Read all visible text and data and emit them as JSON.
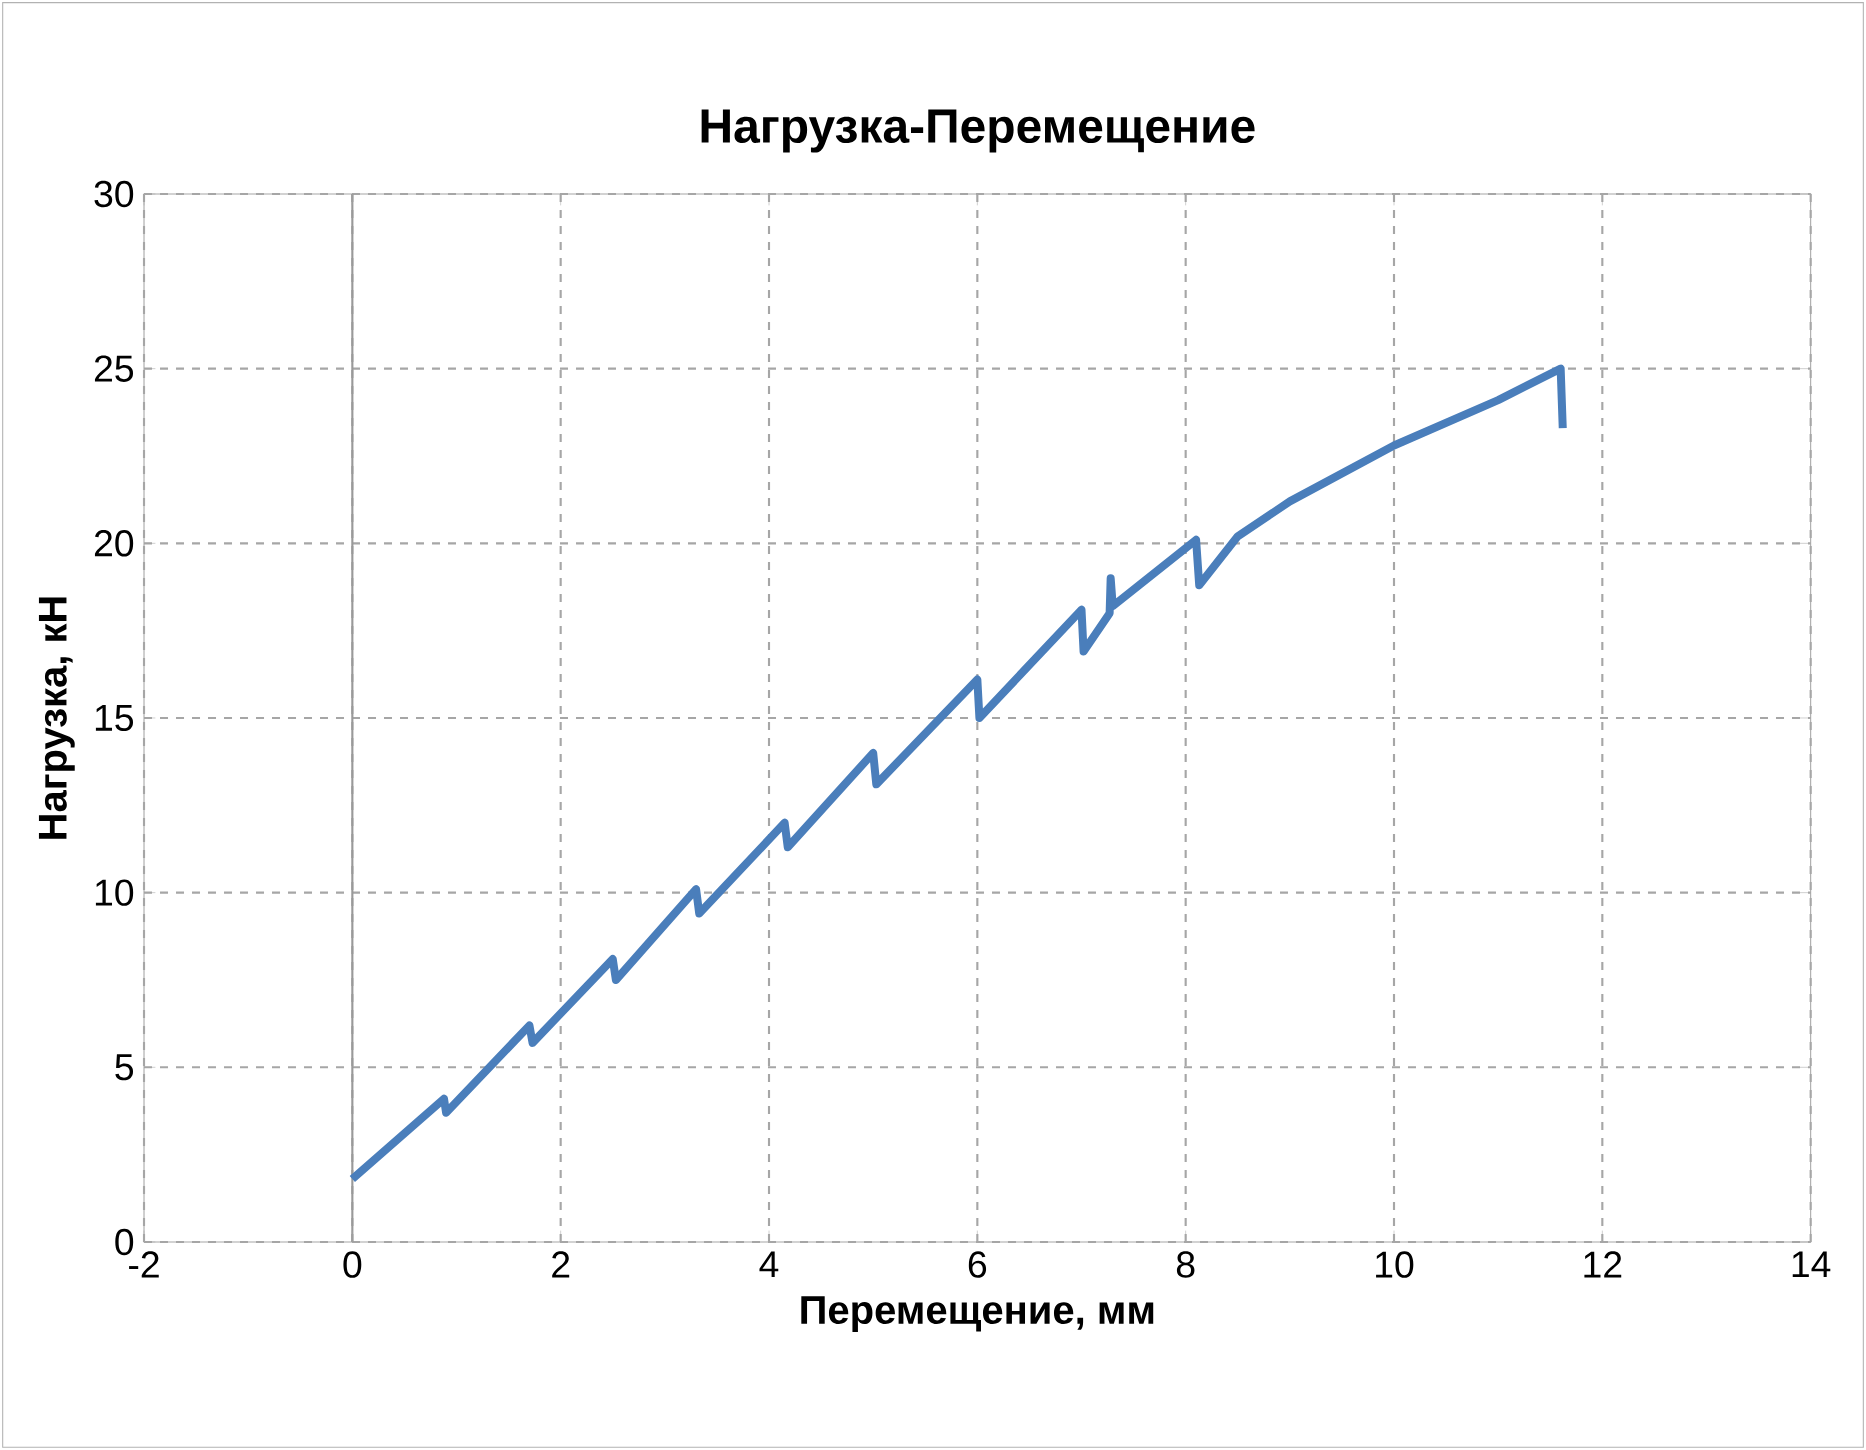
{
  "chart_data": {
    "type": "line",
    "title": "Нагрузка-Перемещение",
    "xlabel": "Перемещение, мм",
    "ylabel": "Нагрузка, кН",
    "xlim": [
      -2,
      14
    ],
    "ylim": [
      0,
      30
    ],
    "xticks": [
      -2,
      0,
      2,
      4,
      6,
      8,
      10,
      12,
      14
    ],
    "yticks": [
      0,
      5,
      10,
      15,
      20,
      25,
      30
    ],
    "grid": true,
    "marker": "none",
    "line_style": "solid",
    "series": [
      {
        "color": "#4a7ebb",
        "x": [
          0,
          0.88,
          0.9,
          1.7,
          1.73,
          2.5,
          2.53,
          3.3,
          3.33,
          4.15,
          4.18,
          5.0,
          5.03,
          6.0,
          6.02,
          7.0,
          7.02,
          7.27,
          7.28,
          7.3,
          8.1,
          8.13,
          8.5,
          9,
          10,
          11,
          11.6,
          11.62
        ],
        "values": [
          1.8,
          4.1,
          3.7,
          6.2,
          5.7,
          8.1,
          7.5,
          10.1,
          9.4,
          12.0,
          11.3,
          14.0,
          13.1,
          16.1,
          15.0,
          18.1,
          16.9,
          18.0,
          19.0,
          18.2,
          20.1,
          18.8,
          20.2,
          21.2,
          22.8,
          24.1,
          25.0,
          23.3
        ]
      }
    ]
  }
}
